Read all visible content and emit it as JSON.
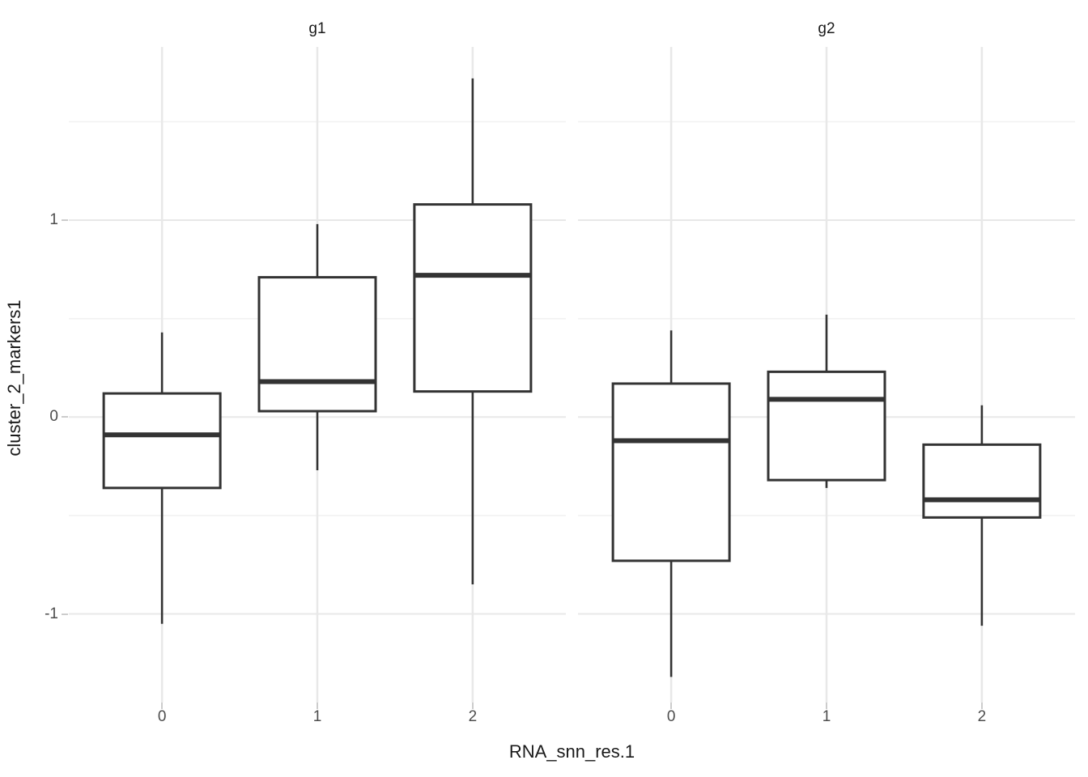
{
  "chart_data": {
    "type": "boxplot",
    "title": "",
    "xlabel": "RNA_snn_res.1",
    "ylabel": "cluster_2_markers1",
    "legend": false,
    "grid": true,
    "ylim": [
      -1.45,
      1.88
    ],
    "y_ticks": [
      -1,
      0,
      1
    ],
    "y_tick_labels": [
      "-1",
      "0",
      "1"
    ],
    "y_minor_ticks": [
      -1.5,
      -0.5,
      0.5,
      1.5
    ],
    "categories": [
      "0",
      "1",
      "2"
    ],
    "facets": [
      {
        "label": "g1",
        "boxes": [
          {
            "category": "0",
            "min": -1.05,
            "q1": -0.36,
            "median": -0.09,
            "q3": 0.12,
            "max": 0.43
          },
          {
            "category": "1",
            "min": -0.27,
            "q1": 0.03,
            "median": 0.18,
            "q3": 0.71,
            "max": 0.98
          },
          {
            "category": "2",
            "min": -0.85,
            "q1": 0.13,
            "median": 0.72,
            "q3": 1.08,
            "max": 1.72
          }
        ]
      },
      {
        "label": "g2",
        "boxes": [
          {
            "category": "0",
            "min": -1.32,
            "q1": -0.73,
            "median": -0.12,
            "q3": 0.17,
            "max": 0.44
          },
          {
            "category": "1",
            "min": -0.36,
            "q1": -0.32,
            "median": 0.09,
            "q3": 0.23,
            "max": 0.52
          },
          {
            "category": "2",
            "min": -1.06,
            "q1": -0.51,
            "median": -0.42,
            "q3": -0.14,
            "max": 0.06
          }
        ]
      }
    ]
  },
  "colors": {
    "box_stroke": "#333333",
    "box_fill": "#ffffff",
    "grid_major": "#e8e8e8",
    "grid_minor": "#f2f2f2",
    "tick_text": "#4d4d4d",
    "title_text": "#1a1a1a",
    "tick_mark": "#cccccc",
    "background": "#ffffff"
  }
}
